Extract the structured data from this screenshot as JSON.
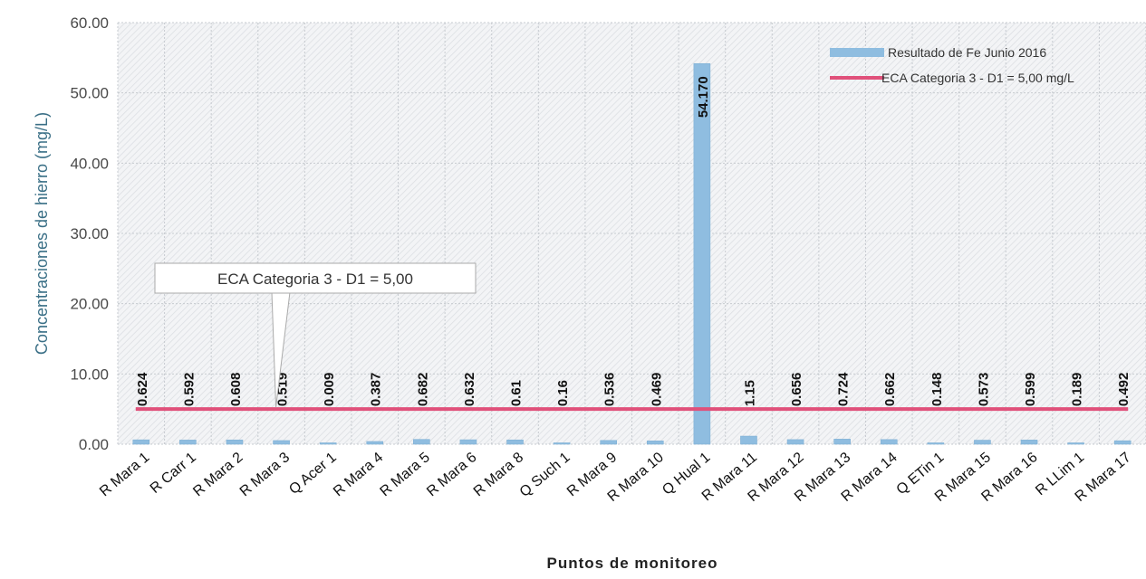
{
  "chart_data": {
    "type": "bar",
    "title": "",
    "xlabel": "Puntos de monitoreo",
    "ylabel": "Concentraciones de hierro (mg/L)",
    "ylim": [
      0,
      60
    ],
    "yticks": [
      "0.00",
      "10.00",
      "20.00",
      "30.00",
      "40.00",
      "50.00",
      "60.00"
    ],
    "grid": true,
    "legend_position": "top-right",
    "categories": [
      "R Mara 1",
      "R Carr 1",
      "R Mara 2",
      "R Mara 3",
      "Q Acer 1",
      "R Mara 4",
      "R Mara 5",
      "R Mara 6",
      "R Mara 8",
      "Q Such 1",
      "R Mara 9",
      "R Mara 10",
      "Q Hual 1",
      "R Mara 11",
      "R Mara 12",
      "R Mara 13",
      "R Mara 14",
      "Q ETin 1",
      "R Mara 15",
      "R Mara 16",
      "R LLim 1",
      "R Mara 17"
    ],
    "series": [
      {
        "name": "Resultado de Fe Junio 2016",
        "kind": "bar",
        "color": "#8fbde0",
        "values": [
          0.624,
          0.592,
          0.608,
          0.519,
          0.009,
          0.387,
          0.682,
          0.632,
          0.61,
          0.16,
          0.536,
          0.469,
          54.17,
          1.15,
          0.656,
          0.724,
          0.662,
          0.148,
          0.573,
          0.599,
          0.189,
          0.492
        ],
        "labels": [
          "0.624",
          "0.592",
          "0.608",
          "0.519",
          "0.009",
          "0.387",
          "0.682",
          "0.632",
          "0.61",
          "0.16",
          "0.536",
          "0.469",
          "54.170",
          "1.15",
          "0.656",
          "0.724",
          "0.662",
          "0.148",
          "0.573",
          "0.599",
          "0.189",
          "0.492"
        ]
      },
      {
        "name": "ECA Categoria 3 - D1 = 5,00 mg/L",
        "kind": "line",
        "color": "#e0507a",
        "value": 5
      }
    ],
    "highlight_label_color": "#e04060",
    "annotation": {
      "text": "ECA Categoria 3 - D1  = 5,00",
      "target_category": "R Mara 3",
      "target_value": 5
    }
  }
}
